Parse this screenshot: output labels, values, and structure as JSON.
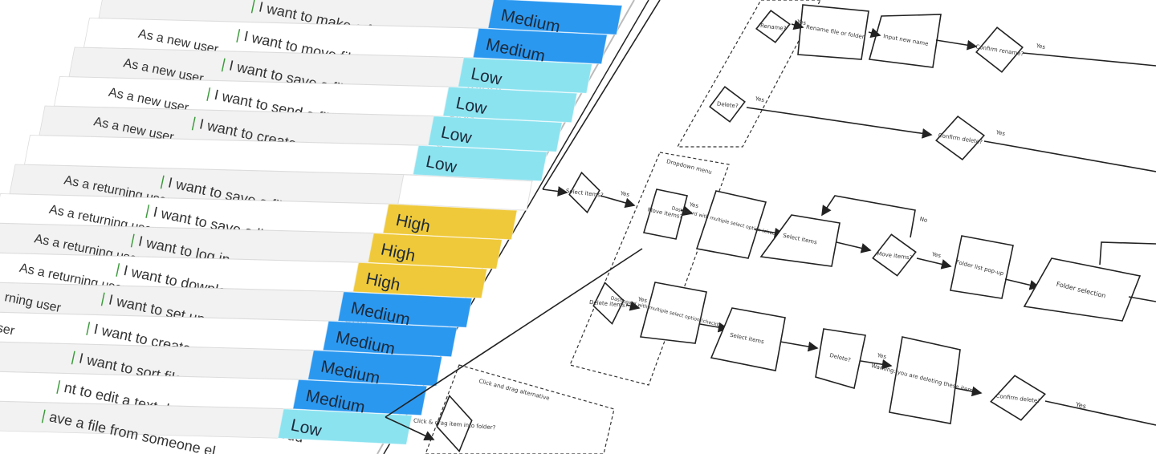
{
  "spreadsheet": {
    "rows": [
      {
        "user": "",
        "want": "I want to make a folder",
        "priority": "Medium",
        "priority_color": "#2b98f0"
      },
      {
        "user": "As a new user",
        "want": "I want to move file or content into a folder",
        "priority": "Medium",
        "priority_color": "#2b98f0"
      },
      {
        "user": "As a new user",
        "want": "I want to save a file from someone else",
        "priority": "Low",
        "priority_color": "#8ce3f0"
      },
      {
        "user": "As a new user",
        "want": "I want to send a file to someone else",
        "priority": "Low",
        "priority_color": "#8ce3f0"
      },
      {
        "user": "As a new user",
        "want": "I want to create a text document",
        "priority": "Low",
        "priority_color": "#8ce3f0"
      },
      {
        "user": "",
        "want": "",
        "priority": "Low",
        "priority_color": "#8ce3f0"
      },
      {
        "user": "As a returning user",
        "want": "I want to save a file",
        "priority": "",
        "priority_color": "#ffffff"
      },
      {
        "user": "As a returning user",
        "want": "I want to save a link",
        "priority": "High",
        "priority_color": "#efc93a"
      },
      {
        "user": "As a returning user",
        "want": "I want to log in",
        "priority": "High",
        "priority_color": "#efc93a"
      },
      {
        "user": "As a returning user",
        "want": "I want to download a file from my cloud",
        "priority": "High",
        "priority_color": "#efc93a"
      },
      {
        "user": "rning user",
        "want": "I want to set up automatic backup",
        "priority": "Medium",
        "priority_color": "#2b98f0"
      },
      {
        "user": "user",
        "want": "I want to create a text document",
        "priority": "Medium",
        "priority_color": "#2b98f0"
      },
      {
        "user": "",
        "want": "I want to sort files and folders",
        "priority": "Medium",
        "priority_color": "#2b98f0"
      },
      {
        "user": "",
        "want": "nt to edit a text document on my cloud",
        "priority": "Medium",
        "priority_color": "#2b98f0"
      },
      {
        "user": "",
        "want": "ave a file from someone el",
        "priority": "Low",
        "priority_color": "#8ce3f0"
      }
    ]
  },
  "flowchart": {
    "labels": {
      "rename": "Rename?",
      "rename_file": "Rename file or folder",
      "input_name": "Input new name",
      "confirm_rename": "Confirm rename?",
      "delete": "Delete?",
      "confirm_delete_top": "Confirm delete?",
      "select_items_q": "Select items?",
      "dropdown_menu": "Dropdown menu",
      "move_items": "Move items?",
      "dashboard_move": "Dashboard with multiple select option (checkboxes)",
      "select_items_move": "Select items",
      "move_items_q": "Move items?",
      "folder_tree": "Folder list pop-up",
      "folder_select": "Folder selection",
      "delete_items": "Delete items?",
      "dashboard_delete": "Dashboard with multiple select option (checkboxes)",
      "select_items_delete": "Select items",
      "delete_q": "Delete?",
      "warning": "Warning: you are deleting these items",
      "confirm_delete": "Confirm delete?",
      "click_drag": "Click and drag alternative",
      "drag_item": "Click & drag item into folder?",
      "yes": "Yes",
      "no": "No"
    }
  }
}
